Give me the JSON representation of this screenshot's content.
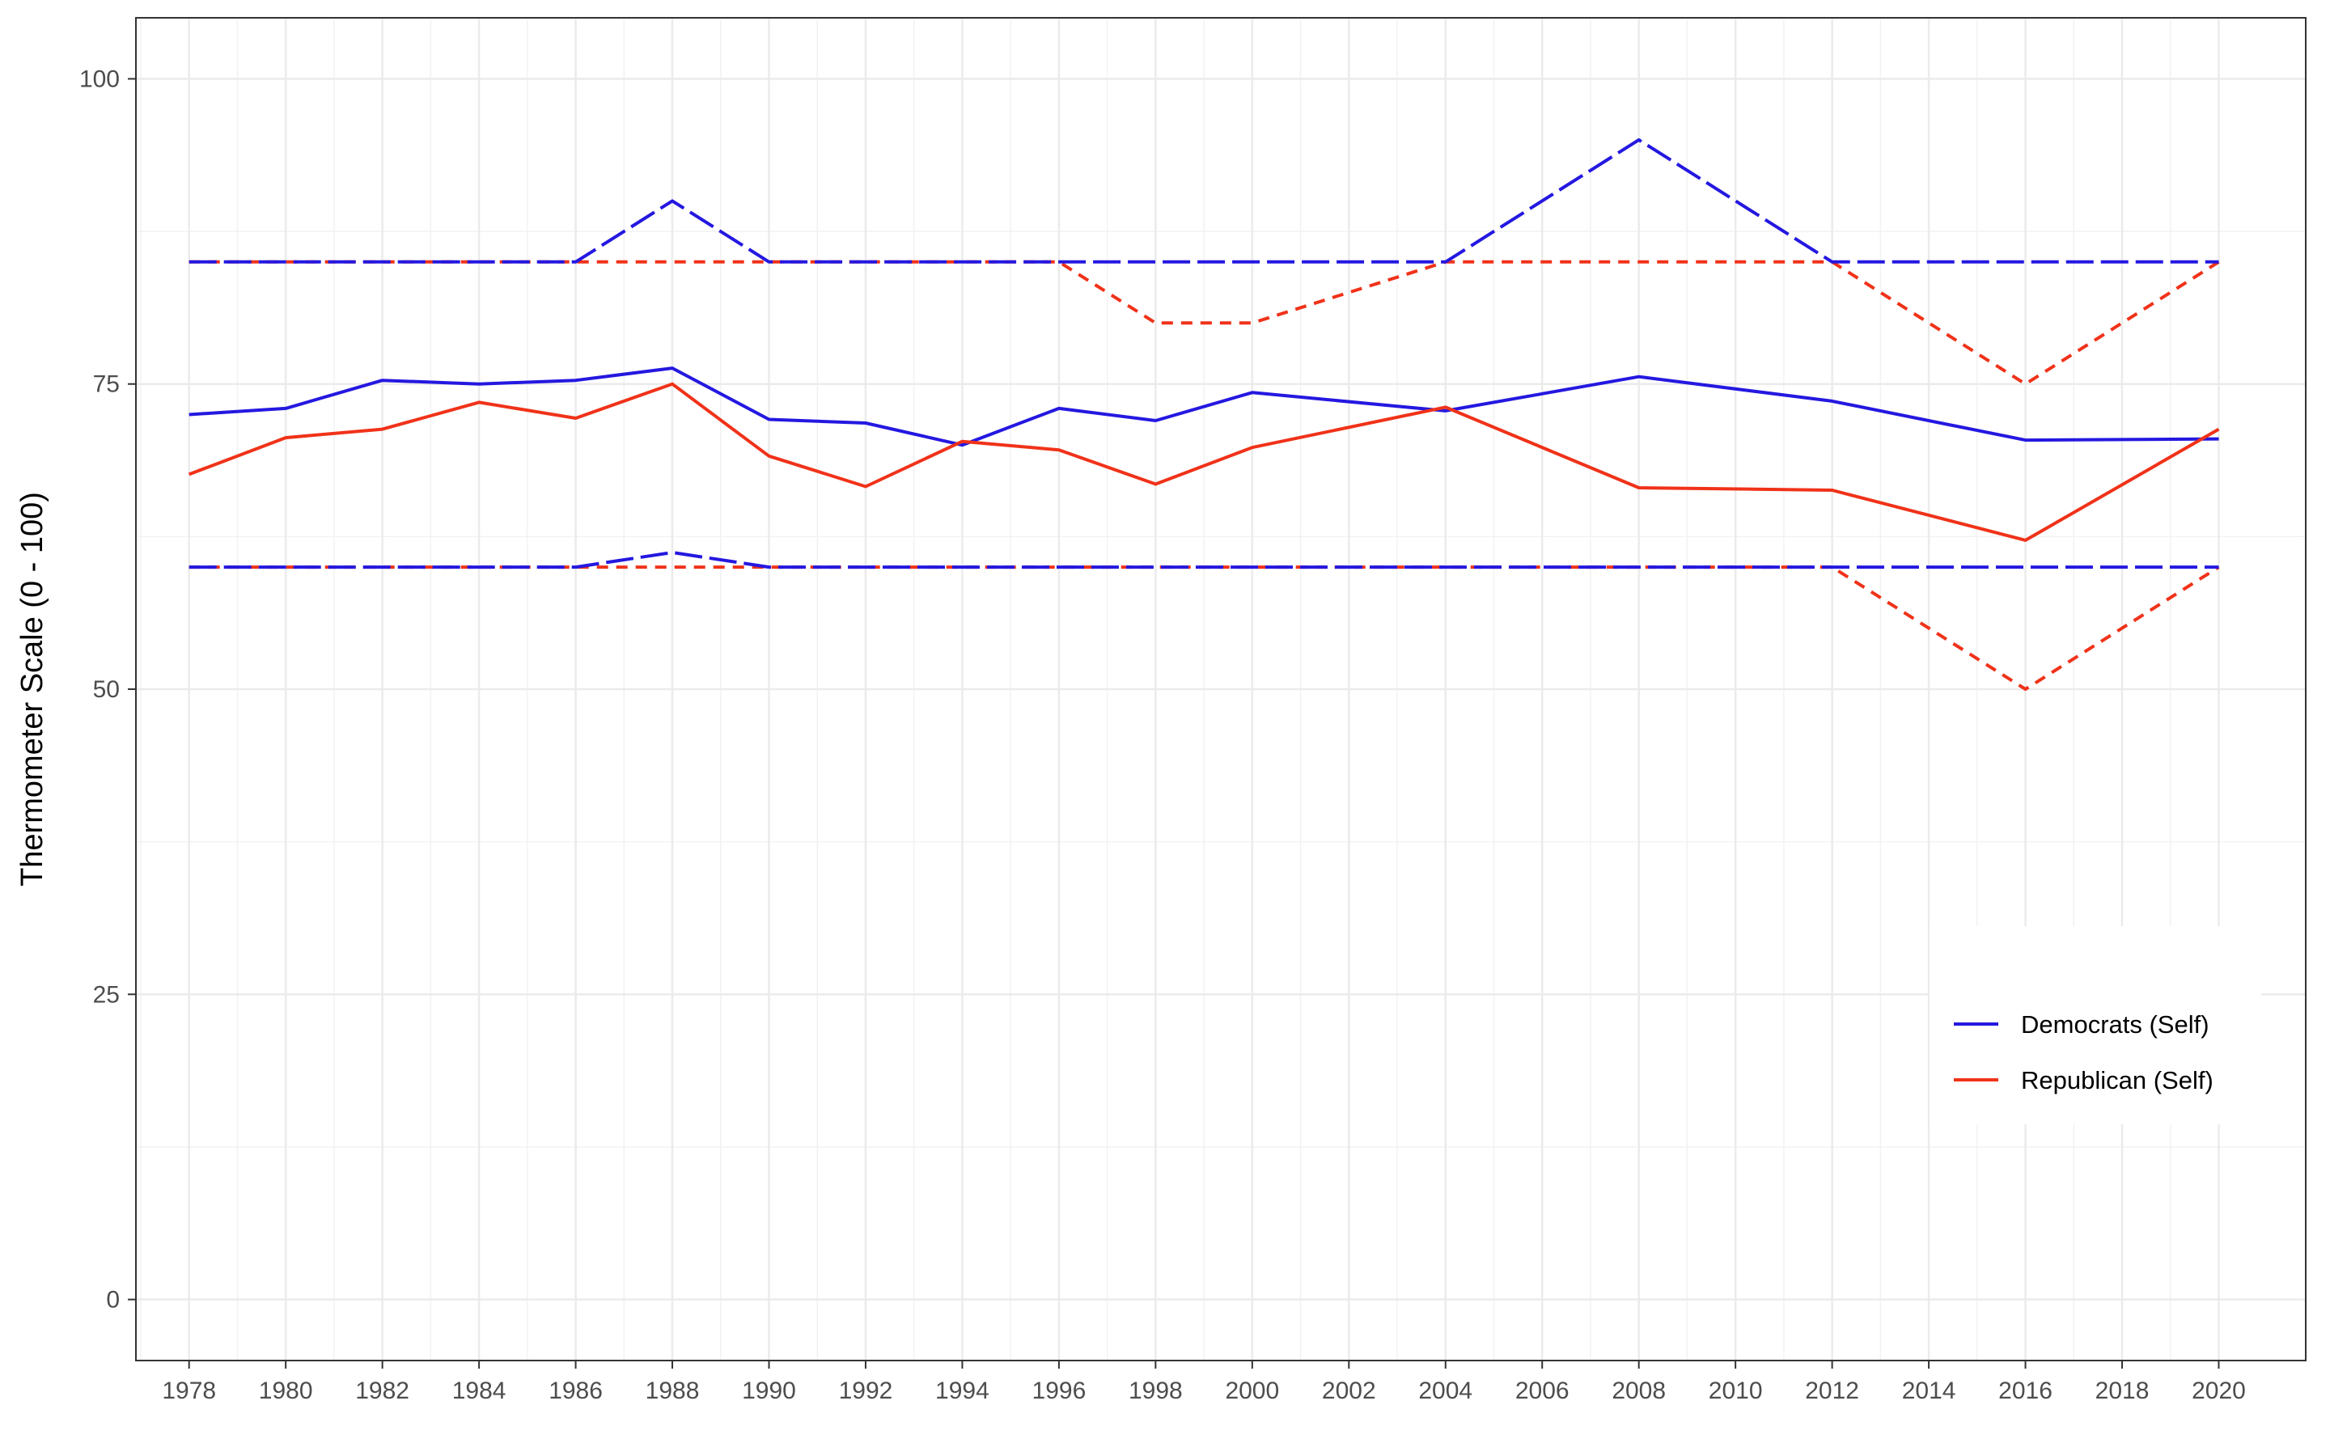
{
  "chart_data": {
    "type": "line",
    "title": "",
    "xlabel": "",
    "ylabel": "Thermometer Scale (0 - 100)",
    "ylim": [
      -5,
      105
    ],
    "xlim": [
      1976.9,
      2021.8
    ],
    "x_ticks": [
      1978,
      1980,
      1982,
      1984,
      1986,
      1988,
      1990,
      1992,
      1994,
      1996,
      1998,
      2000,
      2002,
      2004,
      2006,
      2008,
      2010,
      2012,
      2014,
      2016,
      2018,
      2020
    ],
    "y_ticks": [
      0,
      25,
      50,
      75,
      100
    ],
    "grid": true,
    "legend_position": "bottom-right",
    "colors": {
      "democrats": "#2418e0",
      "republican": "#f03219"
    },
    "series": [
      {
        "name": "Democrats (Self)",
        "color": "#2418e0",
        "line": "solid",
        "in_legend": true,
        "points": [
          [
            1978,
            72.5
          ],
          [
            1980,
            73.0
          ],
          [
            1982,
            75.3
          ],
          [
            1984,
            75.0
          ],
          [
            1986,
            75.3
          ],
          [
            1988,
            76.3
          ],
          [
            1990,
            72.1
          ],
          [
            1992,
            71.8
          ],
          [
            1994,
            70.0
          ],
          [
            1996,
            73.0
          ],
          [
            1998,
            72.0
          ],
          [
            2000,
            74.3
          ],
          [
            2004,
            72.8
          ],
          [
            2008,
            75.6
          ],
          [
            2012,
            73.6
          ],
          [
            2016,
            70.4
          ],
          [
            2020,
            70.5
          ]
        ]
      },
      {
        "name": "Republican (Self)",
        "color": "#f03219",
        "line": "solid",
        "in_legend": true,
        "points": [
          [
            1978,
            67.6
          ],
          [
            1980,
            70.6
          ],
          [
            1982,
            71.3
          ],
          [
            1984,
            73.5
          ],
          [
            1986,
            72.2
          ],
          [
            1988,
            75.0
          ],
          [
            1990,
            69.1
          ],
          [
            1992,
            66.6
          ],
          [
            1994,
            70.3
          ],
          [
            1996,
            69.6
          ],
          [
            1998,
            66.8
          ],
          [
            2000,
            69.8
          ],
          [
            2004,
            73.1
          ],
          [
            2008,
            66.5
          ],
          [
            2012,
            66.3
          ],
          [
            2016,
            62.2
          ],
          [
            2020,
            71.3
          ]
        ]
      },
      {
        "color": "#f03219",
        "line": "dashed",
        "in_legend": false,
        "points": [
          [
            1978,
            85
          ],
          [
            1996,
            85
          ],
          [
            1998,
            80
          ],
          [
            2000,
            80
          ],
          [
            2004,
            85
          ],
          [
            2012,
            85
          ],
          [
            2016,
            75
          ],
          [
            2020,
            85
          ]
        ]
      },
      {
        "color": "#2418e0",
        "line": "longdash",
        "in_legend": false,
        "points": [
          [
            1978,
            85
          ],
          [
            1986,
            85
          ],
          [
            1988,
            90
          ],
          [
            1990,
            85
          ],
          [
            2004,
            85
          ],
          [
            2008,
            95
          ],
          [
            2012,
            85
          ],
          [
            2020,
            85
          ]
        ]
      },
      {
        "color": "#f03219",
        "line": "dashed",
        "in_legend": false,
        "points": [
          [
            1978,
            60
          ],
          [
            1986,
            60
          ],
          [
            1990,
            60
          ],
          [
            2012,
            60
          ],
          [
            2016,
            50
          ],
          [
            2020,
            60
          ]
        ]
      },
      {
        "color": "#2418e0",
        "line": "longdash",
        "in_legend": false,
        "points": [
          [
            1978,
            60
          ],
          [
            1986,
            60
          ],
          [
            1988,
            61.2
          ],
          [
            1990,
            60
          ],
          [
            2020,
            60
          ]
        ]
      }
    ]
  }
}
